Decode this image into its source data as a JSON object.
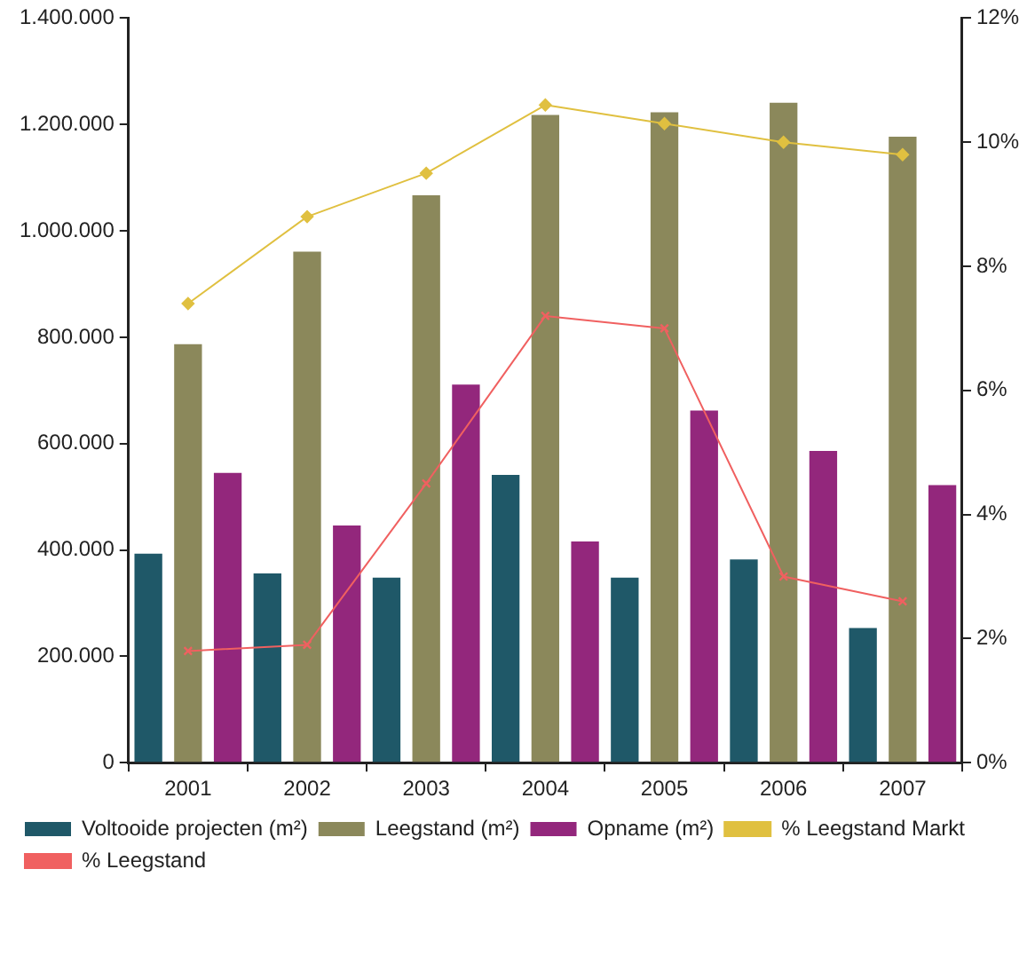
{
  "chart_data": {
    "type": "bar",
    "categories": [
      "2001",
      "2002",
      "2003",
      "2004",
      "2005",
      "2006",
      "2007"
    ],
    "series": [
      {
        "name": "Voltooide projecten (m²)",
        "color": "#1f5868",
        "values": [
          393000,
          356000,
          348000,
          541000,
          348000,
          382000,
          253000
        ]
      },
      {
        "name": "Leegstand (m²)",
        "color": "#8b885b",
        "values": [
          787000,
          961000,
          1067000,
          1218000,
          1223000,
          1241000,
          1177000
        ]
      },
      {
        "name": "Opname (m²)",
        "color": "#93277c",
        "values": [
          545000,
          446000,
          711000,
          416000,
          662000,
          586000,
          522000
        ]
      },
      {
        "name": "% Leegstand Markt",
        "type": "line",
        "axis": "y2",
        "color": "#e0c040",
        "marker": "diamond",
        "values": [
          7.4,
          8.8,
          9.5,
          10.6,
          10.3,
          10.0,
          9.8
        ]
      },
      {
        "name": "% Leegstand",
        "type": "line",
        "axis": "y2",
        "color": "#f06060",
        "marker": "cross",
        "values": [
          1.8,
          1.9,
          4.5,
          7.2,
          7.0,
          3.0,
          2.6
        ]
      }
    ],
    "ylim": [
      0,
      1400000
    ],
    "yticks": [
      0,
      {
        "value": 200000,
        "label": "200.000"
      },
      {
        "value": 400000,
        "label": "400.000"
      },
      {
        "value": 600000,
        "label": "600.000"
      },
      {
        "value": 800000,
        "label": "800.000"
      },
      {
        "value": 1000000,
        "label": "1.000.000"
      },
      {
        "value": 1200000,
        "label": "1.200.000"
      },
      {
        "value": 1400000,
        "label": "1.400.000"
      }
    ],
    "y2lim": [
      0,
      12
    ],
    "y2ticks": [
      {
        "value": 0,
        "label": "0%"
      },
      {
        "value": 2,
        "label": "2%"
      },
      {
        "value": 4,
        "label": "4%"
      },
      {
        "value": 6,
        "label": "6%"
      },
      {
        "value": 8,
        "label": "8%"
      },
      {
        "value": 10,
        "label": "10%"
      },
      {
        "value": 12,
        "label": "12%"
      }
    ],
    "grid": false,
    "legend": "bottom",
    "line_style": "solid"
  }
}
